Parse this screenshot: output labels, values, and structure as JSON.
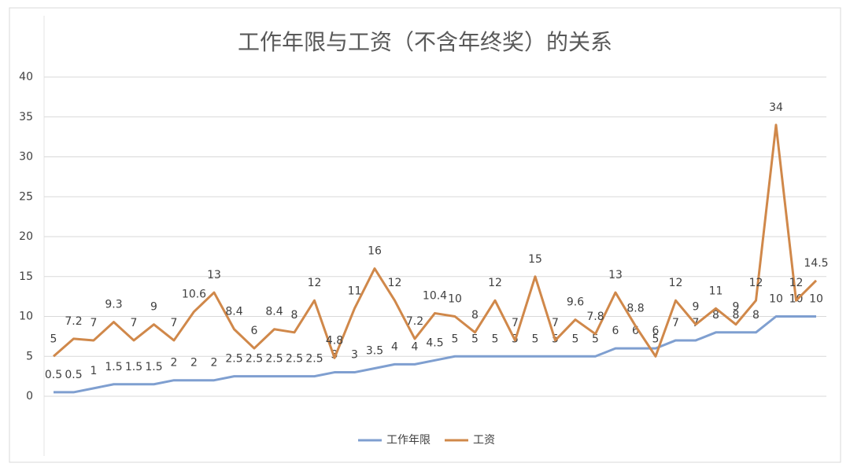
{
  "chart_data": {
    "type": "line",
    "title": "工作年限与工资（不含年终奖）的关系",
    "series": [
      {
        "name": "工作年限",
        "color": "#7f9fd0",
        "values": [
          0.5,
          0.5,
          1,
          1.5,
          1.5,
          1.5,
          2,
          2,
          2,
          2.5,
          2.5,
          2.5,
          2.5,
          2.5,
          3,
          3,
          3.5,
          4,
          4,
          4.5,
          5,
          5,
          5,
          5,
          5,
          5,
          5,
          5,
          6,
          6,
          6,
          7,
          7,
          8,
          8,
          8,
          10,
          10,
          10
        ]
      },
      {
        "name": "工资",
        "color": "#d0884a",
        "values": [
          5,
          7.2,
          7,
          9.3,
          7,
          9,
          7,
          10.6,
          13,
          8.4,
          6,
          8.4,
          8,
          12,
          4.8,
          11,
          16,
          12,
          7.2,
          10.4,
          10,
          8,
          12,
          7,
          15,
          7,
          9.6,
          7.8,
          13,
          8.8,
          5,
          12,
          9,
          11,
          9,
          12,
          34,
          12,
          14.5
        ]
      }
    ],
    "ylim": [
      0,
      40
    ],
    "yticks": [
      0,
      5,
      10,
      15,
      20,
      25,
      30,
      35,
      40
    ],
    "grid": true,
    "legend": "bottom"
  }
}
